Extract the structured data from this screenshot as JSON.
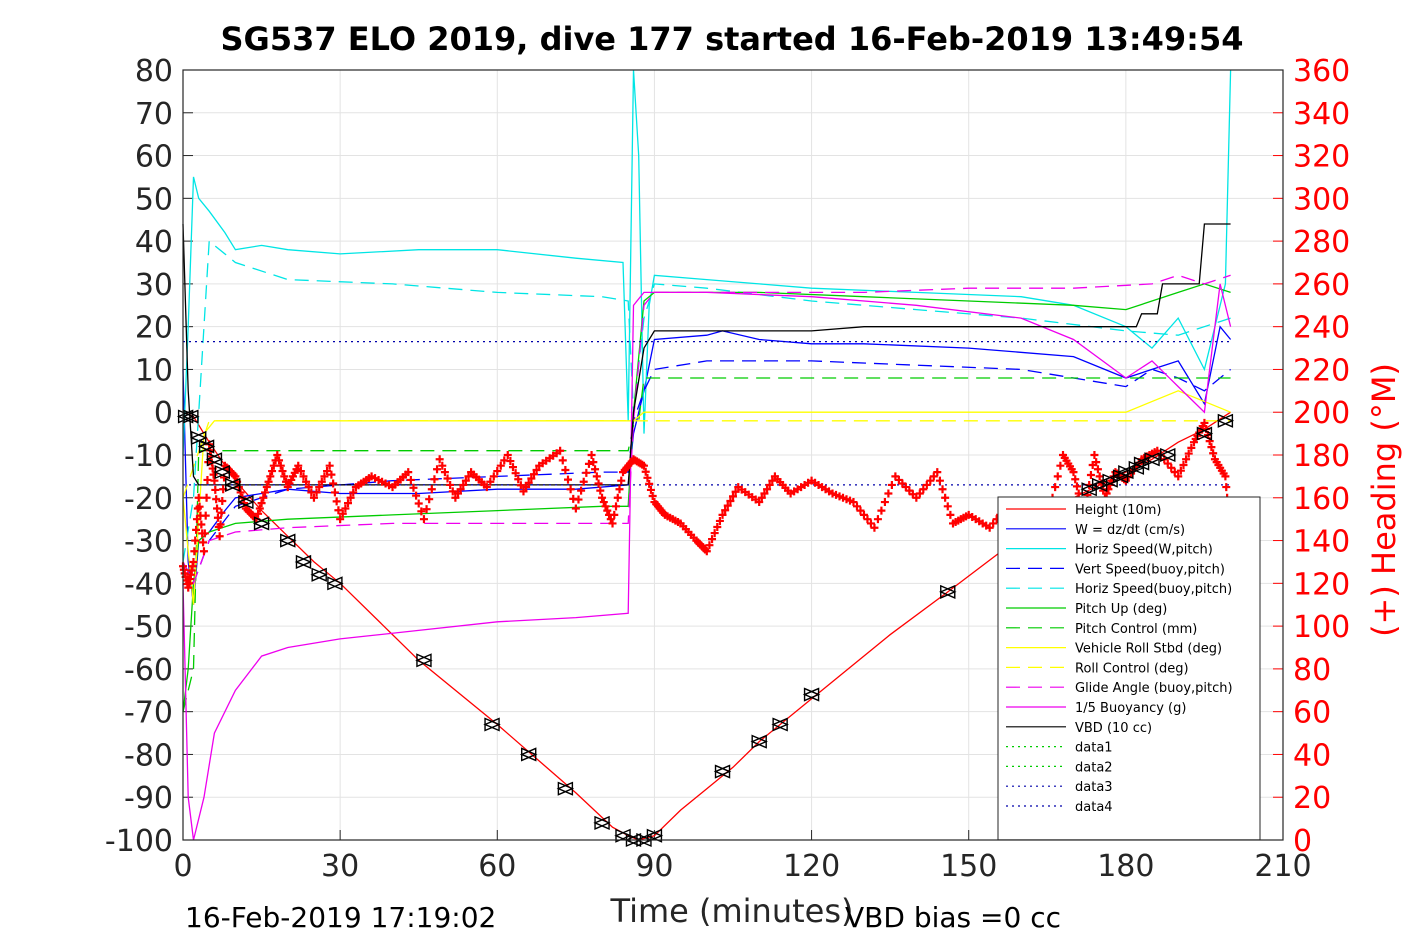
{
  "chart_data": {
    "type": "line",
    "title": "SG537 ELO 2019, dive 177 started 16-Feb-2019 13:49:54",
    "xlabel": "Time (minutes)",
    "ylabel_right": "(+) Heading (°M)",
    "xlim": [
      0,
      210
    ],
    "ylim": [
      -100,
      80
    ],
    "ylim_right": [
      0,
      360
    ],
    "x_ticks": [
      "0",
      "30",
      "60",
      "90",
      "120",
      "150",
      "180",
      "210"
    ],
    "y_ticks": [
      "80",
      "70",
      "60",
      "50",
      "40",
      "30",
      "20",
      "10",
      "0",
      "-10",
      "-20",
      "-30",
      "-40",
      "-50",
      "-60",
      "-70",
      "-80",
      "-90",
      "-100"
    ],
    "y_ticks_right": [
      "360",
      "340",
      "320",
      "300",
      "280",
      "260",
      "240",
      "220",
      "200",
      "180",
      "160",
      "140",
      "120",
      "100",
      "80",
      "60",
      "40",
      "20",
      "0"
    ],
    "grid": true,
    "legend_position": "lower-right",
    "footer_left": "16-Feb-2019 17:19:02",
    "footer_right": "VBD bias =0 cc",
    "series": [
      {
        "name": "Height (10m)",
        "color": "#ff0000",
        "dash": "solid",
        "x": [
          0,
          2,
          5,
          10,
          15,
          20,
          25,
          30,
          45,
          60,
          75,
          82,
          85,
          87,
          90,
          95,
          100,
          105,
          110,
          120,
          135,
          146,
          160,
          170,
          175,
          180,
          185,
          190,
          195,
          200
        ],
        "y": [
          0,
          -1,
          -7,
          -16,
          -23,
          -29,
          -35,
          -40,
          -58,
          -73,
          -89,
          -97,
          -99,
          -100,
          -99,
          -93,
          -88,
          -83,
          -77,
          -67,
          -52,
          -42,
          -29,
          -20,
          -17,
          -14,
          -11,
          -7,
          -4,
          0
        ]
      },
      {
        "name": "W = dz/dt (cm/s)",
        "color": "#0000ff",
        "dash": "solid",
        "x": [
          0,
          1,
          2,
          3,
          5,
          8,
          10,
          15,
          20,
          30,
          45,
          60,
          75,
          85,
          86,
          88,
          90,
          100,
          103,
          110,
          120,
          130,
          150,
          170,
          180,
          185,
          190,
          195,
          198,
          200
        ],
        "y": [
          10,
          -35,
          -45,
          -30,
          -28,
          -23,
          -20,
          -19,
          -18,
          -19,
          -19,
          -18,
          -18,
          -17,
          -5,
          5,
          17,
          18,
          19,
          17,
          16,
          16,
          15,
          13,
          8,
          10,
          12,
          2,
          20,
          17
        ]
      },
      {
        "name": "Horiz Speed(W,pitch)",
        "color": "#00e5e5",
        "dash": "solid",
        "x": [
          0,
          1,
          2,
          3,
          5,
          8,
          10,
          15,
          20,
          30,
          45,
          60,
          75,
          84,
          85,
          86,
          87,
          88,
          89,
          90,
          100,
          110,
          120,
          140,
          160,
          170,
          180,
          185,
          190,
          195,
          199,
          200
        ],
        "y": [
          -10,
          20,
          55,
          50,
          47,
          42,
          38,
          39,
          38,
          37,
          38,
          38,
          36,
          35,
          -2,
          80,
          60,
          -5,
          25,
          32,
          31,
          30,
          29,
          28,
          27,
          25,
          20,
          15,
          22,
          10,
          30,
          80
        ]
      },
      {
        "name": "Vert Speed(buoy,pitch)",
        "color": "#0000ff",
        "dash": "dashed",
        "x": [
          0,
          2,
          5,
          10,
          20,
          40,
          60,
          80,
          85,
          86,
          88,
          90,
          100,
          120,
          140,
          160,
          170,
          180,
          185,
          190,
          195,
          200
        ],
        "y": [
          -35,
          -40,
          -30,
          -22,
          -18,
          -16,
          -15,
          -14,
          -14,
          -2,
          5,
          10,
          12,
          12,
          11,
          10,
          8,
          6,
          10,
          8,
          5,
          10
        ]
      },
      {
        "name": "Horiz Speed(buoy,pitch)",
        "color": "#00e5e5",
        "dash": "dashed",
        "x": [
          0,
          2,
          5,
          10,
          20,
          40,
          60,
          80,
          85,
          86,
          88,
          90,
          100,
          120,
          140,
          160,
          180,
          190,
          200
        ],
        "y": [
          -35,
          -20,
          40,
          35,
          31,
          30,
          28,
          27,
          26,
          0,
          22,
          30,
          29,
          26,
          24,
          22,
          19,
          18,
          22
        ]
      },
      {
        "name": "Pitch Up (deg)",
        "color": "#00cc00",
        "dash": "solid",
        "x": [
          0,
          1,
          2,
          3,
          5,
          10,
          20,
          40,
          60,
          80,
          85,
          86,
          88,
          90,
          110,
          130,
          150,
          170,
          180,
          190,
          195,
          200
        ],
        "y": [
          -70,
          -60,
          -40,
          -30,
          -28,
          -26,
          -25,
          -24,
          -23,
          -22,
          -22,
          0,
          26,
          28,
          28,
          27,
          26,
          25,
          24,
          28,
          30,
          28
        ]
      },
      {
        "name": "Pitch Control (mm)",
        "color": "#00cc00",
        "dash": "dashed",
        "x": [
          0,
          2,
          3,
          10,
          85,
          86,
          87,
          88,
          90,
          200
        ],
        "y": [
          -70,
          -60,
          -9,
          -9,
          -9,
          -3,
          -2,
          8,
          8,
          8
        ]
      },
      {
        "name": "Vehicle Roll Stbd (deg)",
        "color": "#ffff00",
        "dash": "solid",
        "x": [
          0,
          2,
          4,
          6,
          10,
          20,
          40,
          60,
          80,
          84,
          86,
          88,
          90,
          100,
          120,
          140,
          160,
          170,
          180,
          190,
          200
        ],
        "y": [
          -20,
          -45,
          -5,
          -2,
          -2,
          -2,
          -2,
          -2,
          -2,
          -2,
          -2,
          0,
          0,
          0,
          0,
          0,
          0,
          0,
          0,
          5,
          0
        ]
      },
      {
        "name": "Roll Control (deg)",
        "color": "#ffff00",
        "dash": "dashed",
        "x": [
          0,
          5,
          10,
          20,
          40,
          60,
          80,
          85,
          90,
          120,
          150,
          180,
          200
        ],
        "y": [
          -20,
          -2,
          -2,
          -2,
          -2,
          -2,
          -2,
          -2,
          -2,
          -2,
          -2,
          -2,
          -2
        ]
      },
      {
        "name": "Glide Angle (buoy,pitch)",
        "color": "#ee00ee",
        "dash": "dashed",
        "x": [
          0,
          2,
          5,
          10,
          20,
          40,
          60,
          80,
          85,
          86,
          88,
          90,
          110,
          130,
          150,
          170,
          185,
          190,
          195,
          200
        ],
        "y": [
          -35,
          -40,
          -30,
          -28,
          -27,
          -26,
          -26,
          -26,
          -26,
          -2,
          25,
          28,
          28,
          28,
          29,
          29,
          30,
          32,
          30,
          32
        ]
      },
      {
        "name": "1/5 Buoyancy (g)",
        "color": "#ee00ee",
        "dash": "solid",
        "x": [
          0,
          1,
          2,
          4,
          6,
          10,
          15,
          20,
          30,
          45,
          60,
          75,
          85,
          86,
          88,
          90,
          100,
          120,
          140,
          160,
          170,
          180,
          185,
          190,
          195,
          198,
          200
        ],
        "y": [
          -40,
          -90,
          -105,
          -90,
          -75,
          -65,
          -57,
          -55,
          -53,
          -51,
          -49,
          -48,
          -47,
          25,
          28,
          28,
          28,
          27,
          25,
          22,
          17,
          8,
          12,
          6,
          0,
          30,
          20
        ]
      },
      {
        "name": "VBD (10 cc)",
        "color": "#000000",
        "dash": "solid",
        "x": [
          0,
          1,
          2,
          3,
          84,
          85,
          86,
          88,
          90,
          91,
          120,
          130,
          182,
          183,
          186,
          187,
          194,
          195,
          200
        ],
        "y": [
          44,
          5,
          -15,
          -17,
          -17,
          -17,
          0,
          15,
          19,
          19,
          19,
          20,
          20,
          23,
          23,
          30,
          30,
          44,
          44
        ]
      },
      {
        "name": "data1",
        "color": "#00cc00",
        "dash": "dotted",
        "x": [],
        "y": []
      },
      {
        "name": "data2",
        "color": "#00cc00",
        "dash": "dotted",
        "x": [],
        "y": []
      },
      {
        "name": "data3",
        "color": "#0000aa",
        "dash": "dotted",
        "x": [
          0,
          200
        ],
        "y": [
          -17,
          -17
        ]
      },
      {
        "name": "data4",
        "color": "#0000aa",
        "dash": "dotted",
        "x": [
          0,
          200
        ],
        "y": [
          16.5,
          16.5
        ]
      }
    ],
    "heading_series": {
      "name": "(+) Heading",
      "color": "#ff0000",
      "marker": "+",
      "axis": "right",
      "x": [
        0,
        1,
        2,
        3,
        4,
        5,
        6,
        7,
        8,
        10,
        12,
        14,
        16,
        18,
        20,
        22,
        25,
        28,
        30,
        33,
        36,
        40,
        43,
        46,
        49,
        52,
        55,
        58,
        62,
        65,
        68,
        72,
        75,
        78,
        80,
        82,
        84,
        86,
        88,
        90,
        92,
        95,
        98,
        100,
        103,
        106,
        110,
        113,
        116,
        120,
        124,
        128,
        132,
        136,
        140,
        144,
        147,
        150,
        154,
        158,
        162,
        165,
        168,
        170,
        172,
        174,
        176,
        178,
        180,
        183,
        186,
        190,
        193,
        195,
        197,
        199,
        200
      ],
      "y": [
        128,
        118,
        130,
        160,
        135,
        185,
        168,
        142,
        175,
        170,
        155,
        150,
        165,
        180,
        165,
        175,
        160,
        175,
        150,
        165,
        170,
        165,
        172,
        150,
        178,
        160,
        172,
        165,
        180,
        163,
        175,
        182,
        155,
        180,
        160,
        148,
        172,
        178,
        175,
        158,
        152,
        148,
        140,
        135,
        152,
        165,
        158,
        170,
        162,
        168,
        162,
        158,
        146,
        170,
        160,
        172,
        148,
        152,
        146,
        158,
        142,
        150,
        180,
        172,
        152,
        180,
        160,
        172,
        168,
        178,
        182,
        170,
        186,
        195,
        178,
        170,
        140
      ]
    },
    "dive_markers": {
      "name": "Height markers",
      "color": "#000000",
      "marker": "triangles",
      "x": [
        0.5,
        1.5,
        3,
        4.5,
        6,
        7.5,
        9.5,
        12,
        15,
        20,
        23,
        26,
        29,
        46,
        59,
        66,
        73,
        80,
        84,
        86,
        88,
        90,
        103,
        110,
        114,
        120,
        146,
        173,
        175,
        177,
        179,
        180,
        182,
        183,
        185,
        188,
        195,
        199
      ],
      "y": [
        -1,
        -1,
        -6,
        -8,
        -11,
        -14,
        -17,
        -21,
        -26,
        -30,
        -35,
        -38,
        -40,
        -58,
        -73,
        -80,
        -88,
        -96,
        -99,
        -100,
        -100,
        -99,
        -84,
        -77,
        -73,
        -66,
        -42,
        -18,
        -17,
        -16,
        -15,
        -14,
        -13,
        -12,
        -11,
        -10,
        -5,
        -2
      ]
    }
  }
}
